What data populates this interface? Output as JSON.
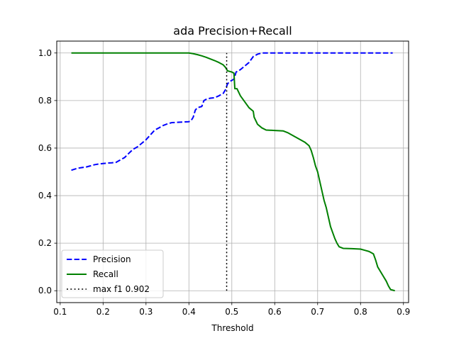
{
  "chart_data": {
    "type": "line",
    "title": "ada Precision+Recall",
    "xlabel": "Threshold",
    "ylabel": "",
    "xlim": [
      0.092,
      0.912
    ],
    "ylim": [
      -0.05,
      1.05
    ],
    "xticks": [
      0.1,
      0.2,
      0.3,
      0.4,
      0.5,
      0.6,
      0.7,
      0.8,
      0.9
    ],
    "xtick_labels": [
      "0.1",
      "0.2",
      "0.3",
      "0.4",
      "0.5",
      "0.6",
      "0.7",
      "0.8",
      "0.9"
    ],
    "yticks": [
      0.0,
      0.2,
      0.4,
      0.6,
      0.8,
      1.0
    ],
    "ytick_labels": [
      "0.0",
      "0.2",
      "0.4",
      "0.6",
      "0.8",
      "1.0"
    ],
    "grid": true,
    "legend": "lower-left",
    "series": [
      {
        "name": "Precision",
        "color": "#0000ff",
        "style": "dashed",
        "points": [
          [
            0.126,
            0.507
          ],
          [
            0.14,
            0.515
          ],
          [
            0.15,
            0.518
          ],
          [
            0.16,
            0.52
          ],
          [
            0.17,
            0.525
          ],
          [
            0.18,
            0.53
          ],
          [
            0.19,
            0.533
          ],
          [
            0.2,
            0.535
          ],
          [
            0.21,
            0.537
          ],
          [
            0.22,
            0.538
          ],
          [
            0.23,
            0.54
          ],
          [
            0.24,
            0.55
          ],
          [
            0.25,
            0.56
          ],
          [
            0.26,
            0.578
          ],
          [
            0.27,
            0.595
          ],
          [
            0.28,
            0.605
          ],
          [
            0.29,
            0.62
          ],
          [
            0.3,
            0.635
          ],
          [
            0.31,
            0.655
          ],
          [
            0.32,
            0.675
          ],
          [
            0.33,
            0.685
          ],
          [
            0.34,
            0.695
          ],
          [
            0.35,
            0.702
          ],
          [
            0.36,
            0.707
          ],
          [
            0.37,
            0.708
          ],
          [
            0.38,
            0.709
          ],
          [
            0.39,
            0.71
          ],
          [
            0.4,
            0.711
          ],
          [
            0.405,
            0.715
          ],
          [
            0.41,
            0.73
          ],
          [
            0.415,
            0.76
          ],
          [
            0.42,
            0.77
          ],
          [
            0.43,
            0.775
          ],
          [
            0.435,
            0.8
          ],
          [
            0.44,
            0.805
          ],
          [
            0.45,
            0.81
          ],
          [
            0.46,
            0.812
          ],
          [
            0.47,
            0.82
          ],
          [
            0.48,
            0.83
          ],
          [
            0.485,
            0.845
          ],
          [
            0.488,
            0.86
          ],
          [
            0.49,
            0.87
          ],
          [
            0.495,
            0.88
          ],
          [
            0.5,
            0.885
          ],
          [
            0.505,
            0.89
          ],
          [
            0.51,
            0.92
          ],
          [
            0.52,
            0.93
          ],
          [
            0.53,
            0.945
          ],
          [
            0.54,
            0.96
          ],
          [
            0.55,
            0.985
          ],
          [
            0.56,
            0.995
          ],
          [
            0.57,
            1.0
          ],
          [
            0.6,
            1.0
          ],
          [
            0.7,
            1.0
          ],
          [
            0.8,
            1.0
          ],
          [
            0.875,
            1.0
          ]
        ]
      },
      {
        "name": "Recall",
        "color": "#008000",
        "style": "solid",
        "points": [
          [
            0.126,
            1.0
          ],
          [
            0.2,
            1.0
          ],
          [
            0.3,
            1.0
          ],
          [
            0.4,
            1.0
          ],
          [
            0.41,
            0.997
          ],
          [
            0.42,
            0.993
          ],
          [
            0.43,
            0.988
          ],
          [
            0.44,
            0.982
          ],
          [
            0.45,
            0.975
          ],
          [
            0.46,
            0.968
          ],
          [
            0.47,
            0.96
          ],
          [
            0.48,
            0.95
          ],
          [
            0.485,
            0.94
          ],
          [
            0.49,
            0.925
          ],
          [
            0.5,
            0.92
          ],
          [
            0.505,
            0.915
          ],
          [
            0.507,
            0.85
          ],
          [
            0.512,
            0.85
          ],
          [
            0.52,
            0.82
          ],
          [
            0.53,
            0.795
          ],
          [
            0.54,
            0.77
          ],
          [
            0.55,
            0.755
          ],
          [
            0.552,
            0.73
          ],
          [
            0.56,
            0.7
          ],
          [
            0.57,
            0.685
          ],
          [
            0.58,
            0.676
          ],
          [
            0.6,
            0.674
          ],
          [
            0.62,
            0.672
          ],
          [
            0.63,
            0.665
          ],
          [
            0.64,
            0.655
          ],
          [
            0.65,
            0.645
          ],
          [
            0.66,
            0.635
          ],
          [
            0.67,
            0.625
          ],
          [
            0.68,
            0.61
          ],
          [
            0.685,
            0.59
          ],
          [
            0.69,
            0.56
          ],
          [
            0.695,
            0.525
          ],
          [
            0.7,
            0.5
          ],
          [
            0.705,
            0.46
          ],
          [
            0.71,
            0.42
          ],
          [
            0.715,
            0.38
          ],
          [
            0.72,
            0.35
          ],
          [
            0.725,
            0.31
          ],
          [
            0.73,
            0.27
          ],
          [
            0.735,
            0.245
          ],
          [
            0.74,
            0.22
          ],
          [
            0.745,
            0.2
          ],
          [
            0.75,
            0.185
          ],
          [
            0.76,
            0.178
          ],
          [
            0.78,
            0.177
          ],
          [
            0.8,
            0.175
          ],
          [
            0.81,
            0.17
          ],
          [
            0.82,
            0.165
          ],
          [
            0.83,
            0.155
          ],
          [
            0.835,
            0.13
          ],
          [
            0.84,
            0.1
          ],
          [
            0.85,
            0.07
          ],
          [
            0.86,
            0.04
          ],
          [
            0.865,
            0.02
          ],
          [
            0.87,
            0.005
          ],
          [
            0.88,
            0.0
          ]
        ]
      },
      {
        "name": "max f1 0.902",
        "color": "#000000",
        "style": "dotted",
        "points": [
          [
            0.488,
            0.0
          ],
          [
            0.488,
            1.0
          ]
        ]
      }
    ]
  }
}
